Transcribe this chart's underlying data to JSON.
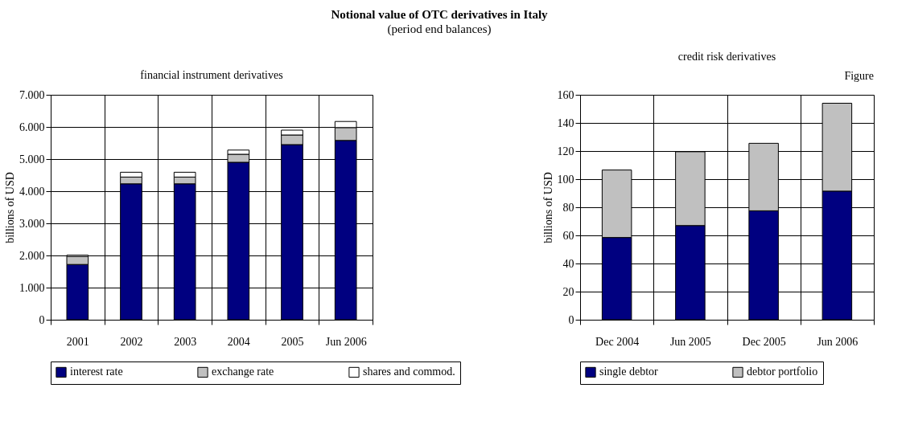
{
  "chart_data": [
    {
      "type": "bar",
      "stacked": true,
      "title": "financial instrument derivatives",
      "ylabel": "billions of USD",
      "annotations": [
        "Notional value of OTC derivatives in Italy",
        "(period end balances)",
        "Figure"
      ],
      "categories": [
        "2001",
        "2002",
        "2003",
        "2004",
        "2005",
        "Jun 2006"
      ],
      "series": [
        {
          "name": "interest rate",
          "color": "#000080",
          "values": [
            1720,
            4230,
            4230,
            4900,
            5450,
            5580
          ]
        },
        {
          "name": "exchange rate",
          "color": "#c0c0c0",
          "values": [
            250,
            210,
            210,
            250,
            300,
            400
          ]
        },
        {
          "name": "shares and commod.",
          "color": "#ffffff",
          "values": [
            40,
            150,
            150,
            130,
            150,
            190
          ]
        }
      ],
      "ylim": [
        0,
        7000
      ],
      "yticks": [
        0,
        {
          "value": 1000,
          "label": "1.000"
        },
        {
          "value": 2000,
          "label": "2.000"
        },
        {
          "value": 3000,
          "label": "3.000"
        },
        {
          "value": 4000,
          "label": "4.000"
        },
        {
          "value": 5000,
          "label": "5.000"
        },
        {
          "value": 6000,
          "label": "6.000"
        },
        {
          "value": 7000,
          "label": "7.000"
        }
      ],
      "grid": true,
      "legend": "bottom"
    },
    {
      "type": "bar",
      "stacked": true,
      "title": "credit risk derivatives",
      "ylabel": "billions of USD",
      "categories": [
        "Dec 2004",
        "Jun 2005",
        "Dec 2005",
        "Jun 2006"
      ],
      "series": [
        {
          "name": "single debtor",
          "color": "#000080",
          "values": [
            58.5,
            67,
            77.5,
            91.5
          ]
        },
        {
          "name": "debtor portfolio",
          "color": "#c0c0c0",
          "values": [
            48,
            52.5,
            48,
            62.5
          ]
        }
      ],
      "ylim": [
        0,
        160
      ],
      "yticks": [
        0,
        20,
        40,
        60,
        80,
        100,
        120,
        140,
        160
      ],
      "grid": true,
      "legend": "bottom"
    }
  ]
}
